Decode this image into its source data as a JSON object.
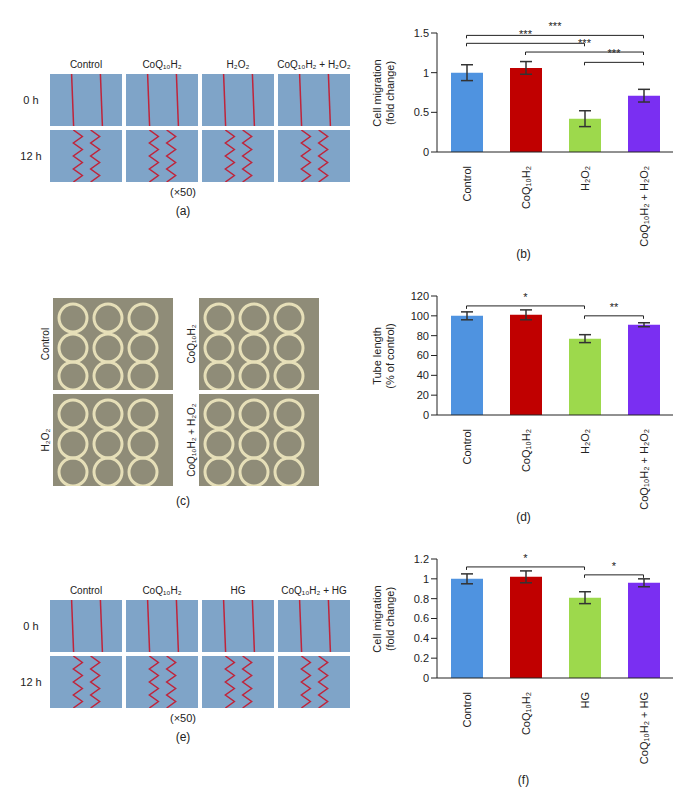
{
  "chart_data": [
    {
      "type": "bar",
      "caption": "(b)",
      "ylabel": [
        "Cell migration",
        "(fold change)"
      ],
      "categories": [
        "Control",
        "CoQ₁₀H₂",
        "H₂O₂",
        "CoQ₁₀H₂ + H₂O₂"
      ],
      "values": [
        1.0,
        1.06,
        0.42,
        0.71
      ],
      "errors": [
        0.1,
        0.08,
        0.1,
        0.08
      ],
      "colors": [
        "#4f93e0",
        "#c00000",
        "#9dd94c",
        "#7a2ff2"
      ],
      "ylim": [
        0,
        1.5
      ],
      "yticks": [
        0,
        0.5,
        1,
        1.5
      ],
      "annotations": [
        {
          "from": "Control",
          "to": "CoQ₁₀H₂ + H₂O₂",
          "y": 1.47,
          "label": "***"
        },
        {
          "from": "Control",
          "to": "H₂O₂",
          "y": 1.37,
          "label": "***"
        },
        {
          "from": "CoQ₁₀H₂",
          "to": "CoQ₁₀H₂ + H₂O₂",
          "y": 1.26,
          "label": "***"
        },
        {
          "from": "H₂O₂",
          "to": "CoQ₁₀H₂ + H₂O₂",
          "y": 1.13,
          "label": "***"
        }
      ]
    },
    {
      "type": "bar",
      "caption": "(d)",
      "ylabel": [
        "Tube length",
        "(% of control)"
      ],
      "categories": [
        "Control",
        "CoQ₁₀H₂",
        "H₂O₂",
        "CoQ₁₀H₂ + H₂O₂"
      ],
      "values": [
        100,
        101,
        77,
        91
      ],
      "errors": [
        4,
        5,
        4,
        2
      ],
      "colors": [
        "#4f93e0",
        "#c00000",
        "#9dd94c",
        "#7a2ff2"
      ],
      "ylim": [
        0,
        120
      ],
      "yticks": [
        0,
        20,
        40,
        60,
        80,
        100,
        120
      ],
      "annotations": [
        {
          "from": "Control",
          "to": "H₂O₂",
          "y": 110,
          "label": "*"
        },
        {
          "from": "H₂O₂",
          "to": "CoQ₁₀H₂ + H₂O₂",
          "y": 100,
          "label": "**"
        }
      ]
    },
    {
      "type": "bar",
      "caption": "(f)",
      "ylabel": [
        "Cell migration",
        "(fold change)"
      ],
      "categories": [
        "Control",
        "CoQ₁₀H₂",
        "HG",
        "CoQ₁₀H₂ + HG"
      ],
      "values": [
        1.0,
        1.02,
        0.81,
        0.96
      ],
      "errors": [
        0.05,
        0.06,
        0.06,
        0.04
      ],
      "colors": [
        "#4f93e0",
        "#c00000",
        "#9dd94c",
        "#7a2ff2"
      ],
      "ylim": [
        0,
        1.2
      ],
      "yticks": [
        0,
        0.2,
        0.4,
        0.6,
        0.8,
        1,
        1.2
      ],
      "annotations": [
        {
          "from": "Control",
          "to": "HG",
          "y": 1.12,
          "label": "*"
        },
        {
          "from": "HG",
          "to": "CoQ₁₀H₂ + HG",
          "y": 1.04,
          "label": "*"
        }
      ]
    }
  ],
  "images": [
    {
      "caption": "(a)",
      "columns": [
        "Control",
        "CoQ₁₀H₂",
        "H₂O₂",
        "CoQ₁₀H₂ + H₂O₂"
      ],
      "rows": [
        "0 h",
        "12 h"
      ],
      "magnification": "(×50)"
    },
    {
      "caption": "(c)",
      "labels": [
        [
          "Control",
          "CoQ₁₀H₂"
        ],
        [
          "H₂O₂",
          "CoQ₁₀H₂ + H₂O₂"
        ]
      ]
    },
    {
      "caption": "(e)",
      "columns": [
        "Control",
        "CoQ₁₀H₂",
        "HG",
        "CoQ₁₀H₂ + HG"
      ],
      "rows": [
        "0 h",
        "12 h"
      ],
      "magnification": "(×50)"
    }
  ]
}
